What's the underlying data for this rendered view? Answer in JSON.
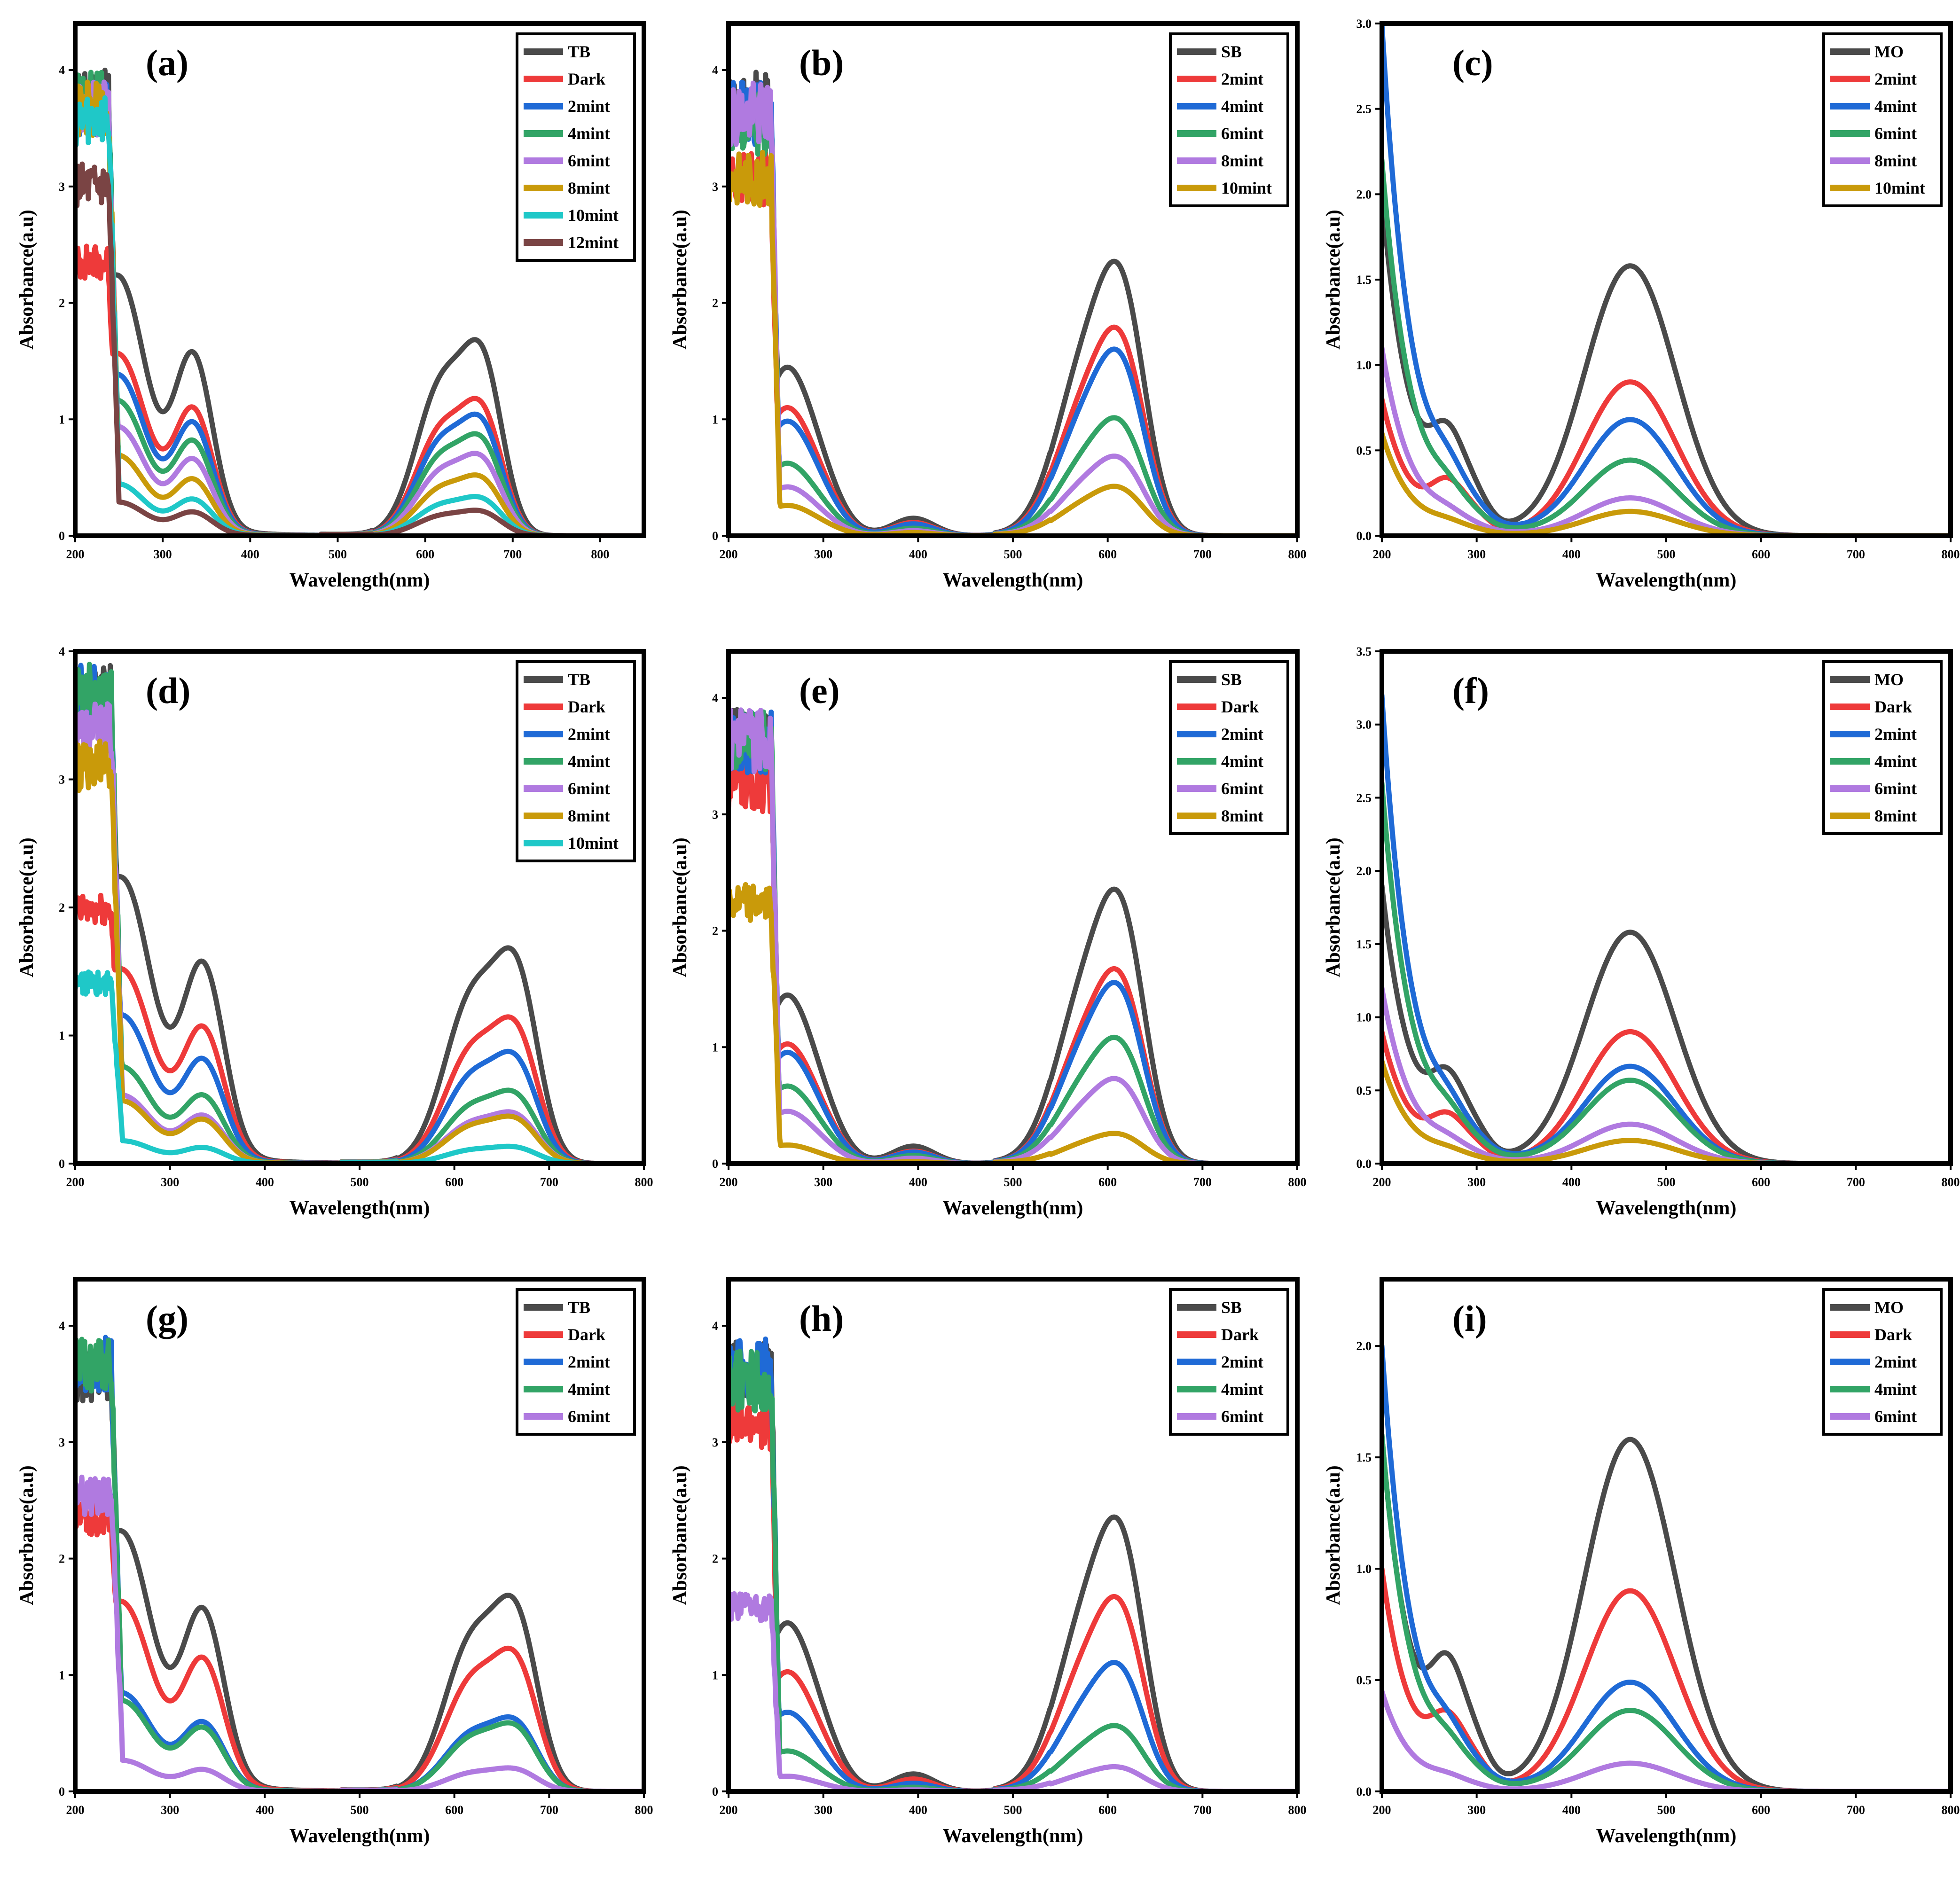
{
  "colors": {
    "black": "#4a4a4a",
    "red": "#ee3a3a",
    "blue": "#1f6ad6",
    "green": "#32a466",
    "violet": "#b07ae0",
    "gold": "#c99a0a",
    "cyan": "#1fc8c8",
    "brown": "#7a4444"
  },
  "chart_data": [
    {
      "label": "(a)",
      "type": "line",
      "dye": "TB",
      "xlabel": "Wavelength(nm)",
      "ylabel": "Absorbance(a.u)",
      "xlim": [
        200,
        850
      ],
      "ylim": [
        0,
        4.4
      ],
      "xticks": [
        200,
        300,
        400,
        500,
        600,
        700,
        800
      ],
      "yticks": [
        0,
        1,
        2,
        3,
        4
      ],
      "legend": "top-right",
      "series": [
        {
          "name": "TB",
          "color": "black",
          "scale": 1.0,
          "noise_max": 4.0
        },
        {
          "name": "Dark",
          "color": "red",
          "scale": 0.7,
          "noise_max": 2.5
        },
        {
          "name": "2mint",
          "color": "blue",
          "scale": 0.62,
          "noise_max": 3.9
        },
        {
          "name": "4mint",
          "color": "green",
          "scale": 0.52,
          "noise_max": 4.0
        },
        {
          "name": "6mint",
          "color": "violet",
          "scale": 0.42,
          "noise_max": 3.9
        },
        {
          "name": "8mint",
          "color": "gold",
          "scale": 0.31,
          "noise_max": 3.9
        },
        {
          "name": "10mint",
          "color": "cyan",
          "scale": 0.2,
          "noise_max": 3.8
        },
        {
          "name": "12mint",
          "color": "brown",
          "scale": 0.13,
          "noise_max": 3.2
        }
      ]
    },
    {
      "label": "(b)",
      "type": "line",
      "dye": "SB",
      "xlabel": "Wavelength(nm)",
      "ylabel": "Absorbance(a.u)",
      "xlim": [
        200,
        800
      ],
      "ylim": [
        0,
        4.4
      ],
      "xticks": [
        200,
        300,
        400,
        500,
        600,
        700,
        800
      ],
      "yticks": [
        0,
        1,
        2,
        3,
        4
      ],
      "legend": "top-right",
      "series": [
        {
          "name": "SB",
          "color": "black",
          "scale": 1.0,
          "noise_max": 4.0
        },
        {
          "name": "2mint",
          "color": "red",
          "scale": 0.76,
          "noise_max": 3.3
        },
        {
          "name": "4mint",
          "color": "blue",
          "scale": 0.68,
          "noise_max": 3.9
        },
        {
          "name": "6mint",
          "color": "green",
          "scale": 0.43,
          "noise_max": 3.8
        },
        {
          "name": "8mint",
          "color": "violet",
          "scale": 0.29,
          "noise_max": 3.9
        },
        {
          "name": "10mint",
          "color": "gold",
          "scale": 0.18,
          "noise_max": 3.3
        }
      ]
    },
    {
      "label": "(c)",
      "type": "line",
      "dye": "MO",
      "xlabel": "Wavelength(nm)",
      "ylabel": "Absorbance(a.u)",
      "xlim": [
        200,
        800
      ],
      "ylim": [
        0,
        3.0
      ],
      "xticks": [
        200,
        300,
        400,
        500,
        600,
        700,
        800
      ],
      "yticks": [
        0.0,
        0.5,
        1.0,
        1.5,
        2.0,
        2.5,
        3.0
      ],
      "legend": "top-right",
      "series": [
        {
          "name": "MO",
          "color": "black",
          "scale": 1.0,
          "start": 2.0
        },
        {
          "name": "2mint",
          "color": "red",
          "scale": 0.57,
          "start": 0.8
        },
        {
          "name": "4mint",
          "color": "blue",
          "scale": 0.43,
          "start": 3.0
        },
        {
          "name": "6mint",
          "color": "green",
          "scale": 0.28,
          "start": 2.2
        },
        {
          "name": "8mint",
          "color": "violet",
          "scale": 0.14,
          "start": 1.1
        },
        {
          "name": "10mint",
          "color": "gold",
          "scale": 0.09,
          "start": 0.6
        }
      ]
    },
    {
      "label": "(d)",
      "type": "line",
      "dye": "TB",
      "xlabel": "Wavelength(nm)",
      "ylabel": "Absorbance(a.u)",
      "xlim": [
        200,
        800
      ],
      "ylim": [
        0,
        4.0
      ],
      "xticks": [
        200,
        300,
        400,
        500,
        600,
        700,
        800
      ],
      "yticks": [
        0,
        1,
        2,
        3,
        4
      ],
      "legend": "top-right",
      "series": [
        {
          "name": "TB",
          "color": "black",
          "scale": 1.0,
          "noise_max": 3.9
        },
        {
          "name": "Dark",
          "color": "red",
          "scale": 0.68,
          "noise_max": 2.1
        },
        {
          "name": "2mint",
          "color": "blue",
          "scale": 0.52,
          "noise_max": 3.9
        },
        {
          "name": "4mint",
          "color": "green",
          "scale": 0.34,
          "noise_max": 3.9
        },
        {
          "name": "6mint",
          "color": "violet",
          "scale": 0.24,
          "noise_max": 3.6
        },
        {
          "name": "8mint",
          "color": "gold",
          "scale": 0.22,
          "noise_max": 3.3
        },
        {
          "name": "10mint",
          "color": "cyan",
          "scale": 0.08,
          "noise_max": 1.5
        }
      ]
    },
    {
      "label": "(e)",
      "type": "line",
      "dye": "SB",
      "xlabel": "Wavelength(nm)",
      "ylabel": "Absorbance(a.u)",
      "xlim": [
        200,
        800
      ],
      "ylim": [
        0,
        4.4
      ],
      "xticks": [
        200,
        300,
        400,
        500,
        600,
        700,
        800
      ],
      "yticks": [
        0,
        1,
        2,
        3,
        4
      ],
      "legend": "top-right",
      "series": [
        {
          "name": "SB",
          "color": "black",
          "scale": 1.0,
          "noise_max": 3.9
        },
        {
          "name": "Dark",
          "color": "red",
          "scale": 0.71,
          "noise_max": 3.5
        },
        {
          "name": "2mint",
          "color": "blue",
          "scale": 0.66,
          "noise_max": 3.9
        },
        {
          "name": "4mint",
          "color": "green",
          "scale": 0.46,
          "noise_max": 3.9
        },
        {
          "name": "6mint",
          "color": "violet",
          "scale": 0.31,
          "noise_max": 3.9
        },
        {
          "name": "8mint",
          "color": "gold",
          "scale": 0.11,
          "noise_max": 2.4
        }
      ]
    },
    {
      "label": "(f)",
      "type": "line",
      "dye": "MO",
      "xlabel": "Wavelength(nm)",
      "ylabel": "Absorbance(a.u)",
      "xlim": [
        200,
        800
      ],
      "ylim": [
        0,
        3.5
      ],
      "xticks": [
        200,
        300,
        400,
        500,
        600,
        700,
        800
      ],
      "yticks": [
        0.0,
        0.5,
        1.0,
        1.5,
        2.0,
        2.5,
        3.0,
        3.5
      ],
      "legend": "top-right",
      "series": [
        {
          "name": "MO",
          "color": "black",
          "scale": 1.0,
          "start": 1.9
        },
        {
          "name": "Dark",
          "color": "red",
          "scale": 0.57,
          "start": 0.9
        },
        {
          "name": "2mint",
          "color": "blue",
          "scale": 0.42,
          "start": 3.2
        },
        {
          "name": "4mint",
          "color": "green",
          "scale": 0.36,
          "start": 2.6
        },
        {
          "name": "6mint",
          "color": "violet",
          "scale": 0.17,
          "start": 1.2
        },
        {
          "name": "8mint",
          "color": "gold",
          "scale": 0.1,
          "start": 0.7
        }
      ]
    },
    {
      "label": "(g)",
      "type": "line",
      "dye": "TB",
      "xlabel": "Wavelength(nm)",
      "ylabel": "Absorbance(a.u)",
      "xlim": [
        200,
        800
      ],
      "ylim": [
        0,
        4.4
      ],
      "xticks": [
        200,
        300,
        400,
        500,
        600,
        700,
        800
      ],
      "yticks": [
        0,
        1,
        2,
        3,
        4
      ],
      "legend": "top-right",
      "series": [
        {
          "name": "TB",
          "color": "black",
          "scale": 1.0,
          "noise_max": 3.8
        },
        {
          "name": "Dark",
          "color": "red",
          "scale": 0.73,
          "noise_max": 2.5
        },
        {
          "name": "2mint",
          "color": "blue",
          "scale": 0.38,
          "noise_max": 3.9
        },
        {
          "name": "4mint",
          "color": "green",
          "scale": 0.35,
          "noise_max": 3.9
        },
        {
          "name": "6mint",
          "color": "violet",
          "scale": 0.12,
          "noise_max": 2.7
        }
      ]
    },
    {
      "label": "(h)",
      "type": "line",
      "dye": "SB",
      "xlabel": "Wavelength(nm)",
      "ylabel": "Absorbance(a.u)",
      "xlim": [
        200,
        800
      ],
      "ylim": [
        0,
        4.4
      ],
      "xticks": [
        200,
        300,
        400,
        500,
        600,
        700,
        800
      ],
      "yticks": [
        0,
        1,
        2,
        3,
        4
      ],
      "legend": "top-right",
      "series": [
        {
          "name": "SB",
          "color": "black",
          "scale": 1.0,
          "noise_max": 3.9
        },
        {
          "name": "Dark",
          "color": "red",
          "scale": 0.71,
          "noise_max": 3.4
        },
        {
          "name": "2mint",
          "color": "blue",
          "scale": 0.47,
          "noise_max": 3.9
        },
        {
          "name": "4mint",
          "color": "green",
          "scale": 0.24,
          "noise_max": 3.8
        },
        {
          "name": "6mint",
          "color": "violet",
          "scale": 0.09,
          "noise_max": 1.7
        }
      ]
    },
    {
      "label": "(i)",
      "type": "line",
      "dye": "MO",
      "xlabel": "Wavelength(nm)",
      "ylabel": "Absorbance(a.u)",
      "xlim": [
        200,
        800
      ],
      "ylim": [
        0,
        2.3
      ],
      "xticks": [
        200,
        300,
        400,
        500,
        600,
        700,
        800
      ],
      "yticks": [
        0.0,
        0.5,
        1.0,
        1.5,
        2.0
      ],
      "legend": "top-right",
      "series": [
        {
          "name": "MO",
          "color": "black",
          "scale": 1.0,
          "start": 1.6
        },
        {
          "name": "Dark",
          "color": "red",
          "scale": 0.57,
          "start": 1.0
        },
        {
          "name": "2mint",
          "color": "blue",
          "scale": 0.31,
          "start": 2.0
        },
        {
          "name": "4mint",
          "color": "green",
          "scale": 0.23,
          "start": 1.6
        },
        {
          "name": "6mint",
          "color": "violet",
          "scale": 0.08,
          "start": 0.45
        }
      ]
    }
  ]
}
